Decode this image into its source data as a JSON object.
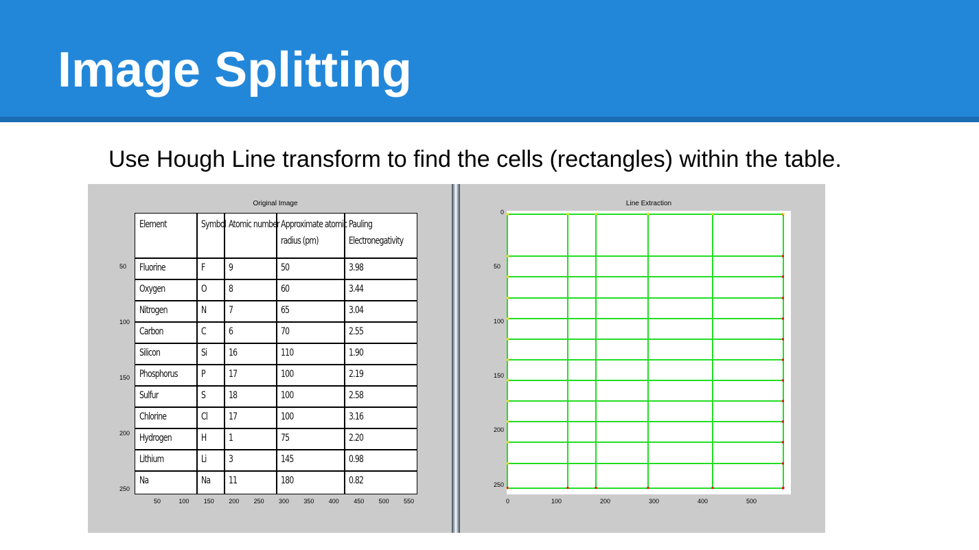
{
  "slide": {
    "title": "Image Splitting",
    "subtitle": "Use Hough Line transform to find the cells (rectangles) within the table."
  },
  "left_panel": {
    "title": "Original Image",
    "y_ticks": [
      "50",
      "100",
      "150",
      "200",
      "250"
    ],
    "x_ticks": [
      "50",
      "100",
      "150",
      "200",
      "250",
      "300",
      "350",
      "400",
      "450",
      "500",
      "550"
    ],
    "table": {
      "headers": [
        [
          "Element"
        ],
        [
          "Symbol"
        ],
        [
          "Atomic number"
        ],
        [
          "Approximate atomic",
          "radius (pm)"
        ],
        [
          "Pauling",
          "Electronegativity"
        ]
      ],
      "rows": [
        [
          "Fluorine",
          "F",
          "9",
          "50",
          "3.98"
        ],
        [
          "Oxygen",
          "O",
          "8",
          "60",
          "3.44"
        ],
        [
          "Nitrogen",
          "N",
          "7",
          "65",
          "3.04"
        ],
        [
          "Carbon",
          "C",
          "6",
          "70",
          "2.55"
        ],
        [
          "Silicon",
          "Si",
          "16",
          "110",
          "1.90"
        ],
        [
          "Phosphorus",
          "P",
          "17",
          "100",
          "2.19"
        ],
        [
          "Sulfur",
          "S",
          "18",
          "100",
          "2.58"
        ],
        [
          "Chlorine",
          "Cl",
          "17",
          "100",
          "3.16"
        ],
        [
          "Hydrogen",
          "H",
          "1",
          "75",
          "2.20"
        ],
        [
          "Lithium",
          "Li",
          "3",
          "145",
          "0.98"
        ],
        [
          "Na",
          "Na",
          "11",
          "180",
          "0.82"
        ]
      ]
    }
  },
  "right_panel": {
    "title": "Line Extraction",
    "y_ticks": [
      "0",
      "50",
      "100",
      "150",
      "200",
      "250"
    ],
    "x_ticks": [
      "0",
      "100",
      "200",
      "300",
      "400",
      "500"
    ],
    "colors": {
      "line": "#22dd22",
      "start_point": "#e8e800",
      "end_point": "#dd1111"
    }
  }
}
